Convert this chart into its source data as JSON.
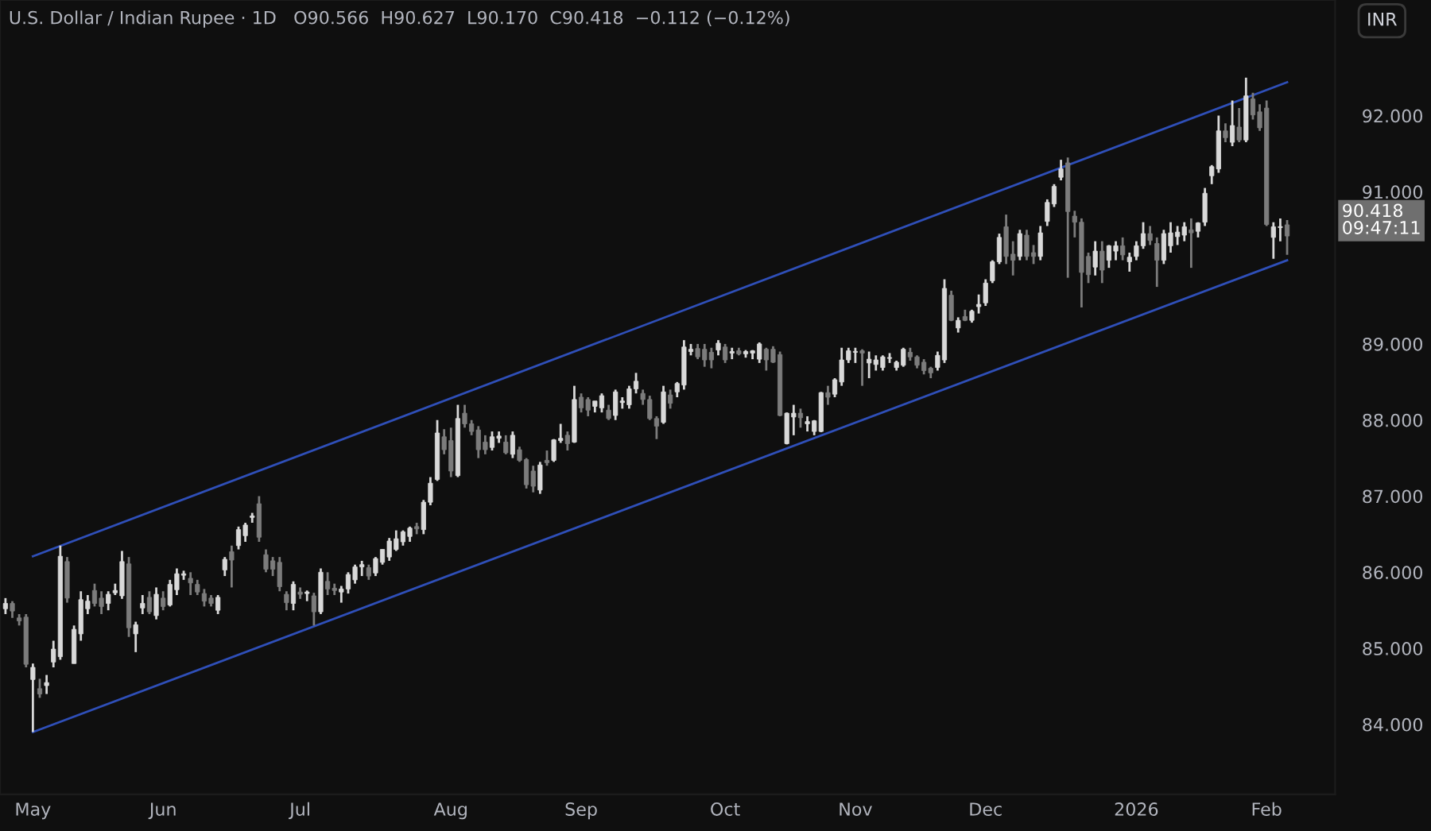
{
  "chart_data": {
    "type": "candlestick",
    "title": "U.S. Dollar / Indian Rupee · 1D   O90.566  H90.627  L90.170  C90.418  −0.112 (−0.12%)",
    "categories": [
      null,
      null,
      null,
      null,
      "May",
      null,
      null,
      null,
      null,
      null,
      null,
      null,
      null,
      null,
      null,
      null,
      null,
      null,
      null,
      null,
      null,
      null,
      null,
      "Jun",
      null,
      null,
      null,
      null,
      null,
      null,
      null,
      null,
      null,
      null,
      null,
      null,
      null,
      null,
      null,
      null,
      null,
      null,
      null,
      "Jul",
      null,
      null,
      null,
      null,
      null,
      null,
      null,
      null,
      null,
      null,
      null,
      null,
      null,
      null,
      null,
      null,
      null,
      null,
      null,
      null,
      null,
      "Aug",
      null,
      null,
      null,
      null,
      null,
      null,
      null,
      null,
      null,
      null,
      null,
      null,
      null,
      null,
      null,
      null,
      null,
      null,
      "Sep",
      null,
      null,
      null,
      null,
      null,
      null,
      null,
      null,
      null,
      null,
      null,
      null,
      null,
      null,
      null,
      null,
      null,
      null,
      null,
      null,
      "Oct",
      null,
      null,
      null,
      null,
      null,
      null,
      null,
      null,
      null,
      null,
      null,
      null,
      null,
      null,
      null,
      null,
      null,
      null,
      "Nov",
      null,
      null,
      null,
      null,
      null,
      null,
      null,
      null,
      null,
      null,
      null,
      null,
      null,
      null,
      null,
      null,
      null,
      null,
      "Dec",
      null,
      null,
      null,
      null,
      null,
      null,
      null,
      null,
      null,
      null,
      null,
      null,
      null,
      null,
      null,
      null,
      null,
      null,
      null,
      null,
      null,
      "2026",
      null,
      null,
      null,
      null,
      null,
      null,
      null,
      null,
      null,
      null,
      null,
      null,
      null,
      null,
      null,
      null,
      null,
      null,
      "Feb",
      null,
      null,
      null
    ],
    "ohlc": [
      [
        85.52,
        85.66,
        85.45,
        85.59
      ],
      [
        85.59,
        85.62,
        85.4,
        85.49
      ],
      [
        85.4,
        85.45,
        85.3,
        85.36
      ],
      [
        85.41,
        85.45,
        84.75,
        84.79
      ],
      [
        84.59,
        84.8,
        83.9,
        84.75
      ],
      [
        84.47,
        84.6,
        84.35,
        84.4
      ],
      [
        84.51,
        84.65,
        84.4,
        84.55
      ],
      [
        84.82,
        85.1,
        84.75,
        84.99
      ],
      [
        84.89,
        86.35,
        84.85,
        86.21
      ],
      [
        86.14,
        86.2,
        85.6,
        85.66
      ],
      [
        84.8,
        85.3,
        84.8,
        85.25
      ],
      [
        85.19,
        85.75,
        85.1,
        85.64
      ],
      [
        85.52,
        85.7,
        85.45,
        85.62
      ],
      [
        85.76,
        85.85,
        85.55,
        85.59
      ],
      [
        85.66,
        85.75,
        85.45,
        85.55
      ],
      [
        85.59,
        85.75,
        85.5,
        85.71
      ],
      [
        85.73,
        85.85,
        85.7,
        85.76
      ],
      [
        85.69,
        86.28,
        85.65,
        86.14
      ],
      [
        86.11,
        86.2,
        85.15,
        85.27
      ],
      [
        85.19,
        85.35,
        84.95,
        85.31
      ],
      [
        85.53,
        85.7,
        85.45,
        85.59
      ],
      [
        85.67,
        85.75,
        85.45,
        85.48
      ],
      [
        85.43,
        85.8,
        85.38,
        85.71
      ],
      [
        85.66,
        85.75,
        85.5,
        85.55
      ],
      [
        85.57,
        85.9,
        85.55,
        85.84
      ],
      [
        85.77,
        86.05,
        85.7,
        85.98
      ],
      [
        85.96,
        86.02,
        85.9,
        85.98
      ],
      [
        85.92,
        86.0,
        85.7,
        85.86
      ],
      [
        85.84,
        85.9,
        85.7,
        85.74
      ],
      [
        85.72,
        85.78,
        85.55,
        85.62
      ],
      [
        85.66,
        85.7,
        85.55,
        85.59
      ],
      [
        85.5,
        85.7,
        85.45,
        85.67
      ],
      [
        86.03,
        86.2,
        85.95,
        86.17
      ],
      [
        86.27,
        86.35,
        85.8,
        86.16
      ],
      [
        86.35,
        86.6,
        86.3,
        86.56
      ],
      [
        86.48,
        86.65,
        86.4,
        86.62
      ],
      [
        86.72,
        86.78,
        86.65,
        86.74
      ],
      [
        86.9,
        87.0,
        86.4,
        86.46
      ],
      [
        86.23,
        86.3,
        86.0,
        86.04
      ],
      [
        86.15,
        86.2,
        85.95,
        86.04
      ],
      [
        86.13,
        86.2,
        85.75,
        85.81
      ],
      [
        85.71,
        85.75,
        85.5,
        85.6
      ],
      [
        85.59,
        85.88,
        85.5,
        85.84
      ],
      [
        85.74,
        85.8,
        85.65,
        85.71
      ],
      [
        85.72,
        85.76,
        85.62,
        85.74
      ],
      [
        85.69,
        85.73,
        85.3,
        85.48
      ],
      [
        85.48,
        86.05,
        85.45,
        86.0
      ],
      [
        85.88,
        86.0,
        85.7,
        85.78
      ],
      [
        85.79,
        85.85,
        85.7,
        85.76
      ],
      [
        85.74,
        85.82,
        85.6,
        85.78
      ],
      [
        85.78,
        86.0,
        85.72,
        85.97
      ],
      [
        85.9,
        86.1,
        85.85,
        86.07
      ],
      [
        86.07,
        86.15,
        85.95,
        86.1
      ],
      [
        86.06,
        86.1,
        85.9,
        85.95
      ],
      [
        85.99,
        86.2,
        85.95,
        86.18
      ],
      [
        86.13,
        86.3,
        86.1,
        86.3
      ],
      [
        86.2,
        86.45,
        86.15,
        86.41
      ],
      [
        86.3,
        86.55,
        86.28,
        86.44
      ],
      [
        86.4,
        86.55,
        86.35,
        86.53
      ],
      [
        86.47,
        86.6,
        86.4,
        86.58
      ],
      [
        86.6,
        86.65,
        86.5,
        86.57
      ],
      [
        86.56,
        86.95,
        86.5,
        86.92
      ],
      [
        86.92,
        87.25,
        86.88,
        87.17
      ],
      [
        87.22,
        88.0,
        87.2,
        87.83
      ],
      [
        87.78,
        87.88,
        87.55,
        87.61
      ],
      [
        87.73,
        87.9,
        87.25,
        87.33
      ],
      [
        87.27,
        88.2,
        87.25,
        88.02
      ],
      [
        88.09,
        88.2,
        87.9,
        87.95
      ],
      [
        87.95,
        88.0,
        87.8,
        87.85
      ],
      [
        87.87,
        87.92,
        87.5,
        87.61
      ],
      [
        87.71,
        87.8,
        87.55,
        87.61
      ],
      [
        87.64,
        87.85,
        87.6,
        87.78
      ],
      [
        87.76,
        87.85,
        87.7,
        87.79
      ],
      [
        87.71,
        87.8,
        87.55,
        87.57
      ],
      [
        87.55,
        87.85,
        87.5,
        87.8
      ],
      [
        87.61,
        87.65,
        87.45,
        87.47
      ],
      [
        87.48,
        87.5,
        87.1,
        87.15
      ],
      [
        87.33,
        87.4,
        87.05,
        87.13
      ],
      [
        87.08,
        87.45,
        87.03,
        87.41
      ],
      [
        87.47,
        87.6,
        87.4,
        87.44
      ],
      [
        87.47,
        87.75,
        87.45,
        87.74
      ],
      [
        87.73,
        87.95,
        87.7,
        87.76
      ],
      [
        87.8,
        87.85,
        87.6,
        87.69
      ],
      [
        87.71,
        88.45,
        87.7,
        88.27
      ],
      [
        88.3,
        88.35,
        88.1,
        88.16
      ],
      [
        88.27,
        88.3,
        88.05,
        88.13
      ],
      [
        88.18,
        88.25,
        88.1,
        88.25
      ],
      [
        88.16,
        88.35,
        88.1,
        88.32
      ],
      [
        88.13,
        88.2,
        88.0,
        88.02
      ],
      [
        88.06,
        88.4,
        88.0,
        88.37
      ],
      [
        88.23,
        88.3,
        88.15,
        88.25
      ],
      [
        88.2,
        88.45,
        88.15,
        88.41
      ],
      [
        88.41,
        88.62,
        88.35,
        88.51
      ],
      [
        88.35,
        88.4,
        88.2,
        88.27
      ],
      [
        88.27,
        88.32,
        88.0,
        88.02
      ],
      [
        88.02,
        88.05,
        87.75,
        87.92
      ],
      [
        87.97,
        88.45,
        87.95,
        88.37
      ],
      [
        88.33,
        88.4,
        88.15,
        88.22
      ],
      [
        88.37,
        88.5,
        88.3,
        88.48
      ],
      [
        88.46,
        89.05,
        88.4,
        88.96
      ],
      [
        88.9,
        89.0,
        88.85,
        88.93
      ],
      [
        88.94,
        89.0,
        88.8,
        88.83
      ],
      [
        88.93,
        89.0,
        88.7,
        88.79
      ],
      [
        88.89,
        88.95,
        88.68,
        88.79
      ],
      [
        88.92,
        89.05,
        88.85,
        89.01
      ],
      [
        88.96,
        89.0,
        88.75,
        88.79
      ],
      [
        88.88,
        88.95,
        88.8,
        88.9
      ],
      [
        88.91,
        88.95,
        88.85,
        88.87
      ],
      [
        88.87,
        88.92,
        88.82,
        88.9
      ],
      [
        88.88,
        88.92,
        88.8,
        88.91
      ],
      [
        88.8,
        89.02,
        88.75,
        89.0
      ],
      [
        88.93,
        88.95,
        88.65,
        88.79
      ],
      [
        88.93,
        88.97,
        88.75,
        88.76
      ],
      [
        88.86,
        88.9,
        88.05,
        88.06
      ],
      [
        87.69,
        88.1,
        87.68,
        88.09
      ],
      [
        88.04,
        88.2,
        87.8,
        88.09
      ],
      [
        88.09,
        88.15,
        87.9,
        88.03
      ],
      [
        87.95,
        88.05,
        87.85,
        87.98
      ],
      [
        87.85,
        88.0,
        87.8,
        87.99
      ],
      [
        87.85,
        88.37,
        87.84,
        88.36
      ],
      [
        88.36,
        88.45,
        88.2,
        88.3
      ],
      [
        88.34,
        88.55,
        88.3,
        88.53
      ],
      [
        88.5,
        88.95,
        88.45,
        88.79
      ],
      [
        88.79,
        88.95,
        88.75,
        88.91
      ],
      [
        88.89,
        88.95,
        88.75,
        88.9
      ],
      [
        88.91,
        88.93,
        88.45,
        88.88
      ],
      [
        88.75,
        88.9,
        88.55,
        88.8
      ],
      [
        88.73,
        88.85,
        88.65,
        88.79
      ],
      [
        88.69,
        88.85,
        88.65,
        88.83
      ],
      [
        88.81,
        88.88,
        88.75,
        88.82
      ],
      [
        88.69,
        88.78,
        88.65,
        88.76
      ],
      [
        88.72,
        88.95,
        88.7,
        88.93
      ],
      [
        88.89,
        88.95,
        88.78,
        88.83
      ],
      [
        88.83,
        88.85,
        88.68,
        88.72
      ],
      [
        88.76,
        88.8,
        88.6,
        88.65
      ],
      [
        88.68,
        88.7,
        88.55,
        88.62
      ],
      [
        88.69,
        88.9,
        88.65,
        88.85
      ],
      [
        88.79,
        89.85,
        88.75,
        89.73
      ],
      [
        89.64,
        89.7,
        89.3,
        89.31
      ],
      [
        89.21,
        89.35,
        89.15,
        89.31
      ],
      [
        89.36,
        89.45,
        89.3,
        89.31
      ],
      [
        89.31,
        89.45,
        89.28,
        89.43
      ],
      [
        89.49,
        89.65,
        89.4,
        89.52
      ],
      [
        89.54,
        89.85,
        89.5,
        89.8
      ],
      [
        89.83,
        90.1,
        89.8,
        90.08
      ],
      [
        90.08,
        90.45,
        90.05,
        90.4
      ],
      [
        90.54,
        90.7,
        90.05,
        90.15
      ],
      [
        90.18,
        90.35,
        89.9,
        90.1
      ],
      [
        90.15,
        90.5,
        90.1,
        90.45
      ],
      [
        90.43,
        90.5,
        90.1,
        90.15
      ],
      [
        90.2,
        90.3,
        90.05,
        90.15
      ],
      [
        90.15,
        90.55,
        90.1,
        90.46
      ],
      [
        90.61,
        90.9,
        90.55,
        90.86
      ],
      [
        90.84,
        91.1,
        90.8,
        91.07
      ],
      [
        91.19,
        91.42,
        91.15,
        91.3
      ],
      [
        91.38,
        91.45,
        89.87,
        90.74
      ],
      [
        90.68,
        90.75,
        90.4,
        90.6
      ],
      [
        90.6,
        90.65,
        89.48,
        89.94
      ],
      [
        90.15,
        90.2,
        89.8,
        89.91
      ],
      [
        90.01,
        90.35,
        89.9,
        90.22
      ],
      [
        90.22,
        90.35,
        89.8,
        89.97
      ],
      [
        90.1,
        90.3,
        90.0,
        90.29
      ],
      [
        90.22,
        90.35,
        90.1,
        90.29
      ],
      [
        90.29,
        90.4,
        90.1,
        90.17
      ],
      [
        90.08,
        90.2,
        89.95,
        90.14
      ],
      [
        90.15,
        90.35,
        90.1,
        90.29
      ],
      [
        90.29,
        90.6,
        90.25,
        90.45
      ],
      [
        90.45,
        90.55,
        90.3,
        90.36
      ],
      [
        90.32,
        90.4,
        89.75,
        90.1
      ],
      [
        90.1,
        90.5,
        90.05,
        90.45
      ],
      [
        90.29,
        90.6,
        90.2,
        90.46
      ],
      [
        90.41,
        90.55,
        90.3,
        90.47
      ],
      [
        90.43,
        90.6,
        90.35,
        90.54
      ],
      [
        90.5,
        90.65,
        90.0,
        90.46
      ],
      [
        90.48,
        90.6,
        90.4,
        90.59
      ],
      [
        90.6,
        91.05,
        90.55,
        90.98
      ],
      [
        91.21,
        91.35,
        91.1,
        91.33
      ],
      [
        91.3,
        92.0,
        91.25,
        91.8
      ],
      [
        91.8,
        91.9,
        91.65,
        91.71
      ],
      [
        91.65,
        92.2,
        91.6,
        91.87
      ],
      [
        91.85,
        92.1,
        91.65,
        91.68
      ],
      [
        91.68,
        92.5,
        91.65,
        92.26
      ],
      [
        92.22,
        92.3,
        91.95,
        92.01
      ],
      [
        92.05,
        92.15,
        91.8,
        91.84
      ],
      [
        92.1,
        92.2,
        90.55,
        90.57
      ],
      [
        90.4,
        90.6,
        90.12,
        90.54
      ],
      [
        90.53,
        90.65,
        90.35,
        90.53
      ],
      [
        90.566,
        90.627,
        90.17,
        90.418
      ]
    ],
    "series": [
      {
        "type": "line",
        "color": "#2f4fb8",
        "values": [
          null,
          null,
          null,
          null,
          86.21,
          null,
          null,
          null,
          null,
          null,
          null,
          null,
          null,
          null,
          null,
          null,
          null,
          null,
          null,
          null,
          null,
          null,
          null,
          null,
          null,
          null,
          null,
          null,
          null,
          null,
          null,
          null,
          null,
          null,
          null,
          null,
          null,
          null,
          null,
          null,
          null,
          null,
          null,
          null,
          null,
          null,
          null,
          null,
          null,
          null,
          null,
          null,
          null,
          null,
          null,
          null,
          null,
          null,
          null,
          null,
          null,
          null,
          null,
          null,
          null,
          null,
          null,
          null,
          null,
          null,
          null,
          null,
          null,
          null,
          null,
          null,
          null,
          null,
          null,
          null,
          null,
          null,
          null,
          null,
          null,
          null,
          null,
          null,
          null,
          null,
          null,
          null,
          null,
          null,
          null,
          null,
          null,
          null,
          null,
          null,
          null,
          null,
          null,
          null,
          null,
          null,
          null,
          null,
          null,
          null,
          null,
          null,
          null,
          null,
          null,
          null,
          null,
          null,
          null,
          null,
          null,
          null,
          null,
          null,
          null,
          null,
          null,
          null,
          null,
          null,
          null,
          null,
          null,
          null,
          null,
          null,
          null,
          null,
          null,
          null,
          null,
          null,
          null,
          null,
          null,
          null,
          null,
          null,
          null,
          null,
          null,
          null,
          null,
          null,
          null,
          null,
          null,
          null,
          null,
          null,
          null,
          null,
          null,
          null,
          null,
          null,
          null,
          null,
          null,
          null,
          null,
          null,
          null,
          null,
          null,
          null,
          null,
          null,
          null,
          null,
          null,
          null,
          null,
          null,
          null,
          null,
          null,
          92.44
        ]
      },
      {
        "type": "line",
        "color": "#2f4fb8",
        "values": [
          null,
          null,
          null,
          null,
          83.9,
          null,
          null,
          null,
          null,
          null,
          null,
          null,
          null,
          null,
          null,
          null,
          null,
          null,
          null,
          null,
          null,
          null,
          null,
          null,
          null,
          null,
          null,
          null,
          null,
          null,
          null,
          null,
          null,
          null,
          null,
          null,
          null,
          null,
          null,
          null,
          null,
          null,
          null,
          null,
          null,
          null,
          null,
          null,
          null,
          null,
          null,
          null,
          null,
          null,
          null,
          null,
          null,
          null,
          null,
          null,
          null,
          null,
          null,
          null,
          null,
          null,
          null,
          null,
          null,
          null,
          null,
          null,
          null,
          null,
          null,
          null,
          null,
          null,
          null,
          null,
          null,
          null,
          null,
          null,
          null,
          null,
          null,
          null,
          null,
          null,
          null,
          null,
          null,
          null,
          null,
          null,
          null,
          null,
          null,
          null,
          null,
          null,
          null,
          null,
          null,
          null,
          null,
          null,
          null,
          null,
          null,
          null,
          null,
          null,
          null,
          null,
          null,
          null,
          null,
          null,
          null,
          null,
          null,
          null,
          null,
          null,
          null,
          null,
          null,
          null,
          null,
          null,
          null,
          null,
          null,
          null,
          null,
          null,
          null,
          null,
          null,
          null,
          null,
          null,
          null,
          null,
          null,
          null,
          null,
          null,
          null,
          null,
          null,
          null,
          null,
          null,
          null,
          null,
          null,
          null,
          null,
          null,
          null,
          null,
          null,
          null,
          null,
          null,
          null,
          null,
          null,
          null,
          null,
          null,
          null,
          null,
          null,
          null,
          null,
          null,
          null,
          null,
          null,
          null,
          null,
          null,
          null,
          90.1
        ]
      }
    ],
    "ylim": [
      83.08,
      93.52
    ],
    "yticks": [
      {
        "value": 84,
        "label": "84.000"
      },
      {
        "value": 85,
        "label": "85.000"
      },
      {
        "value": 86,
        "label": "86.000"
      },
      {
        "value": 87,
        "label": "87.000"
      },
      {
        "value": 88,
        "label": "88.000"
      },
      {
        "value": 89,
        "label": "89.000"
      },
      {
        "value": 91,
        "label": "91.000"
      },
      {
        "value": 92,
        "label": "92.000"
      }
    ],
    "annotations": [
      "90.418",
      "09:47:11",
      "INR"
    ],
    "grid": false
  }
}
